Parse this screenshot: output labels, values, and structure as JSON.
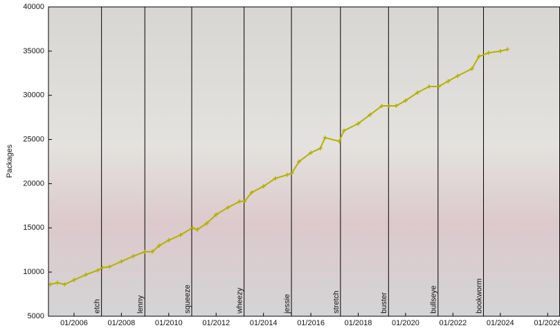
{
  "chart_data": {
    "type": "line",
    "y_label": "Packages",
    "x": [
      2005.0,
      2005.3,
      2005.6,
      2006.0,
      2006.5,
      2007.0,
      2007.2,
      2007.5,
      2008.0,
      2008.5,
      2009.0,
      2009.3,
      2009.6,
      2010.0,
      2010.5,
      2011.0,
      2011.2,
      2011.6,
      2012.0,
      2012.5,
      2013.0,
      2013.2,
      2013.5,
      2014.0,
      2014.5,
      2015.0,
      2015.2,
      2015.5,
      2016.0,
      2016.4,
      2016.6,
      2017.2,
      2017.4,
      2018.0,
      2018.5,
      2019.0,
      2019.3,
      2019.6,
      2020.0,
      2020.5,
      2021.0,
      2021.4,
      2021.8,
      2022.2,
      2022.8,
      2023.1,
      2023.5,
      2024.0,
      2024.3
    ],
    "series": [
      {
        "color": "#b5b000",
        "values": [
          8600,
          8800,
          8600,
          9100,
          9700,
          10200,
          10500,
          10600,
          11200,
          11800,
          12300,
          12300,
          13000,
          13600,
          14200,
          15000,
          14800,
          15500,
          16500,
          17300,
          18000,
          18000,
          19000,
          19700,
          20600,
          21000,
          21200,
          22500,
          23500,
          24000,
          25200,
          24800,
          26000,
          26800,
          27800,
          28800,
          28800,
          28800,
          29400,
          30300,
          31000,
          31000,
          31600,
          32200,
          33000,
          34400,
          34800,
          35000,
          35200
        ]
      }
    ],
    "releases": [
      {
        "name": "etch",
        "x": 2007.16
      },
      {
        "name": "lenny",
        "x": 2008.99
      },
      {
        "name": "squeeze",
        "x": 2010.97
      },
      {
        "name": "wheezy",
        "x": 2013.18
      },
      {
        "name": "jessie",
        "x": 2015.18
      },
      {
        "name": "stretch",
        "x": 2017.25
      },
      {
        "name": "buster",
        "x": 2019.28
      },
      {
        "name": "bullseye",
        "x": 2021.37
      },
      {
        "name": "bookworm",
        "x": 2023.29
      }
    ],
    "xlim": [
      2004.92,
      2026.52
    ],
    "ylim": [
      5000,
      40000
    ],
    "xticks": [
      {
        "value": 2006,
        "label": "01/2006"
      },
      {
        "value": 2008,
        "label": "01/2008"
      },
      {
        "value": 2010,
        "label": "01/2010"
      },
      {
        "value": 2012,
        "label": "01/2012"
      },
      {
        "value": 2014,
        "label": "01/2014"
      },
      {
        "value": 2016,
        "label": "01/2016"
      },
      {
        "value": 2018,
        "label": "01/2018"
      },
      {
        "value": 2020,
        "label": "01/2020"
      },
      {
        "value": 2022,
        "label": "01/2022"
      },
      {
        "value": 2024,
        "label": "01/2024"
      },
      {
        "value": 2026,
        "label": "01/2026"
      }
    ],
    "yticks": [
      5000,
      10000,
      15000,
      20000,
      25000,
      30000,
      35000,
      40000
    ]
  }
}
